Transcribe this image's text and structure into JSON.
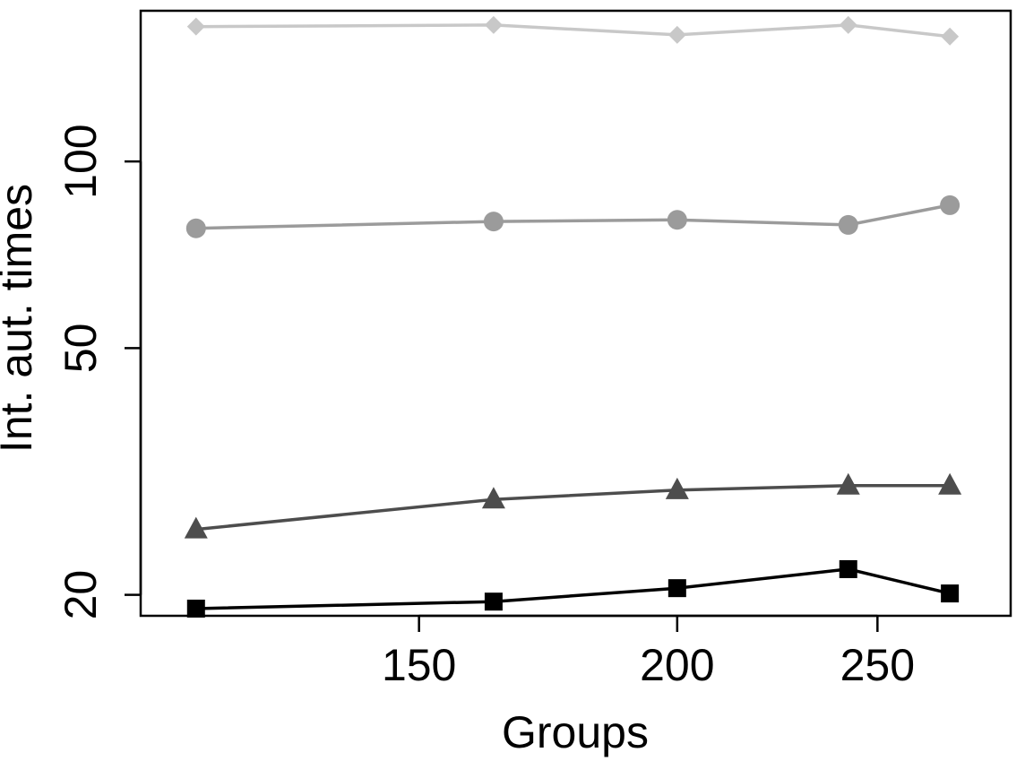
{
  "chart_data": {
    "type": "line",
    "xlabel": "Groups",
    "ylabel": "Int. aut. times",
    "x_scale": "log",
    "y_scale": "log",
    "xlim": [
      110,
      290
    ],
    "ylim": [
      18.5,
      175
    ],
    "x_ticks": [
      150,
      200,
      250
    ],
    "x_tick_labels": [
      "150",
      "200",
      "250"
    ],
    "y_ticks": [
      20,
      50,
      100
    ],
    "y_tick_labels": [
      "20",
      "50",
      "100"
    ],
    "x": [
      117,
      163,
      200,
      242,
      271
    ],
    "series": [
      {
        "marker": "diamond",
        "color": "#c8c8c8",
        "values": [
          165,
          166,
          160,
          166,
          159
        ]
      },
      {
        "marker": "circle",
        "color": "#9b9b9b",
        "values": [
          78,
          80,
          80.5,
          79,
          85
        ]
      },
      {
        "marker": "triangle",
        "color": "#4d4d4d",
        "values": [
          25.5,
          28.5,
          29.5,
          30,
          30
        ]
      },
      {
        "marker": "square",
        "color": "#000000",
        "values": [
          19,
          19.5,
          20.5,
          22,
          20.1
        ]
      }
    ],
    "grid": false,
    "legend": "none"
  }
}
